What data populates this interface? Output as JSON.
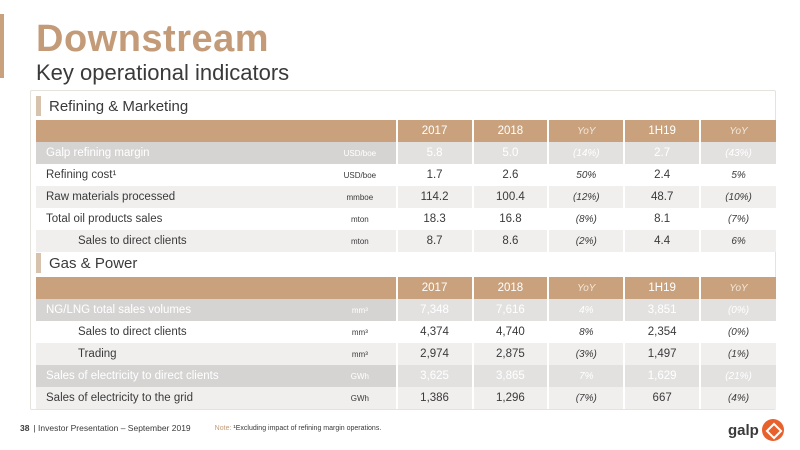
{
  "header": {
    "title": "Downstream",
    "subtitle": "Key operational indicators"
  },
  "sections": [
    {
      "label": "Refining & Marketing",
      "columns": [
        "2017",
        "2018",
        "YoY",
        "1H19",
        "YoY"
      ],
      "rows": [
        {
          "name": "Galp refining margin",
          "unit": "USD/boe",
          "v2017": "5.8",
          "v2018": "5.0",
          "yoy1": "(14%)",
          "h119": "2.7",
          "yoy2": "(43%)"
        },
        {
          "name": "Refining cost¹",
          "unit": "USD/boe",
          "v2017": "1.7",
          "v2018": "2.6",
          "yoy1": "50%",
          "h119": "2.4",
          "yoy2": "5%"
        },
        {
          "name": "Raw materials processed",
          "unit": "mmboe",
          "v2017": "114.2",
          "v2018": "100.4",
          "yoy1": "(12%)",
          "h119": "48.7",
          "yoy2": "(10%)"
        },
        {
          "name": "Total oil products sales",
          "unit": "mton",
          "v2017": "18.3",
          "v2018": "16.8",
          "yoy1": "(8%)",
          "h119": "8.1",
          "yoy2": "(7%)"
        },
        {
          "name": "Sales to direct clients",
          "unit": "mton",
          "v2017": "8.7",
          "v2018": "8.6",
          "yoy1": "(2%)",
          "h119": "4.4",
          "yoy2": "6%"
        }
      ]
    },
    {
      "label": "Gas & Power",
      "columns": [
        "2017",
        "2018",
        "YoY",
        "1H19",
        "YoY"
      ],
      "rows": [
        {
          "name": "NG/LNG total sales volumes",
          "unit": "mm³",
          "v2017": "7,348",
          "v2018": "7,616",
          "yoy1": "4%",
          "h119": "3,851",
          "yoy2": "(0%)"
        },
        {
          "name": "Sales to direct clients",
          "unit": "mm³",
          "v2017": "4,374",
          "v2018": "4,740",
          "yoy1": "8%",
          "h119": "2,354",
          "yoy2": "(0%)"
        },
        {
          "name": "Trading",
          "unit": "mm³",
          "v2017": "2,974",
          "v2018": "2,875",
          "yoy1": "(3%)",
          "h119": "1,497",
          "yoy2": "(1%)"
        },
        {
          "name": "Sales of electricity to direct clients",
          "unit": "GWh",
          "v2017": "3,625",
          "v2018": "3,865",
          "yoy1": "7%",
          "h119": "1,629",
          "yoy2": "(21%)"
        },
        {
          "name": "Sales of electricity to the grid",
          "unit": "GWh",
          "v2017": "1,386",
          "v2018": "1,296",
          "yoy1": "(7%)",
          "h119": "667",
          "yoy2": "(4%)"
        }
      ]
    }
  ],
  "footer": {
    "page_number": "38",
    "text": "| Investor Presentation – September 2019",
    "note_label": "Note:",
    "note": "¹Excluding impact of refining margin operations."
  },
  "logo": {
    "word": "galp",
    "icon": "galp-logo-icon",
    "color": "#e8612c"
  },
  "colors": {
    "accent": "#c9a27d",
    "title": "#c39b78"
  }
}
